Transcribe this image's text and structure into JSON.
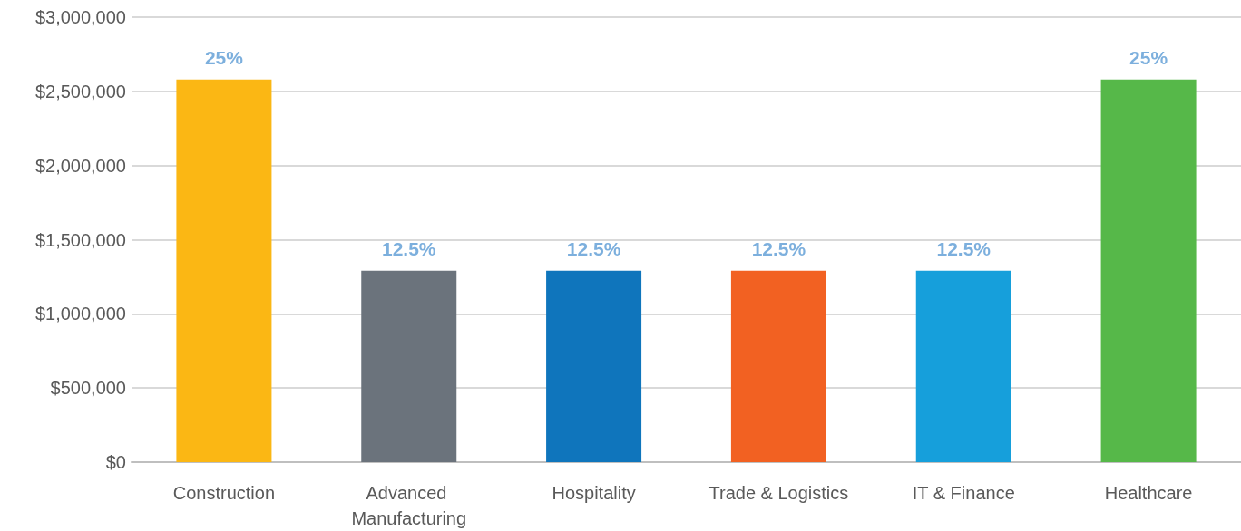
{
  "chart_data": {
    "type": "bar",
    "categories": [
      "Construction",
      "Advanced Manufacturing",
      "Hospitality",
      "Trade & Logistics",
      "IT & Finance",
      "Healthcare"
    ],
    "values": [
      2580000,
      1290000,
      1290000,
      1290000,
      1290000,
      2580000
    ],
    "colors": [
      "#fbb714",
      "#6b737c",
      "#0f75bc",
      "#f26122",
      "#169fdb",
      "#56b849"
    ],
    "annotations": [
      {
        "text": "25%",
        "x": "Construction",
        "y": 2580000
      },
      {
        "text": "12.5%",
        "x": "Advanced Manufacturing",
        "y": 1290000
      },
      {
        "text": "12.5%",
        "x": "Hospitality",
        "y": 1290000
      },
      {
        "text": "12.5%",
        "x": "Trade & Logistics",
        "y": 1290000
      },
      {
        "text": "12.5%",
        "x": "IT & Finance",
        "y": 1290000
      },
      {
        "text": "25%",
        "x": "Healthcare",
        "y": 2580000
      }
    ],
    "ylim": [
      0,
      3000000
    ],
    "yticks": [
      {
        "value": 0,
        "label": "$0"
      },
      {
        "value": 500000,
        "label": "$500,000"
      },
      {
        "value": 1000000,
        "label": "$1,000,000"
      },
      {
        "value": 1500000,
        "label": "$1,500,000"
      },
      {
        "value": 2000000,
        "label": "$2,000,000"
      },
      {
        "value": 2500000,
        "label": "$2,500,000"
      },
      {
        "value": 3000000,
        "label": "$3,000,000"
      }
    ],
    "grid": "y"
  }
}
